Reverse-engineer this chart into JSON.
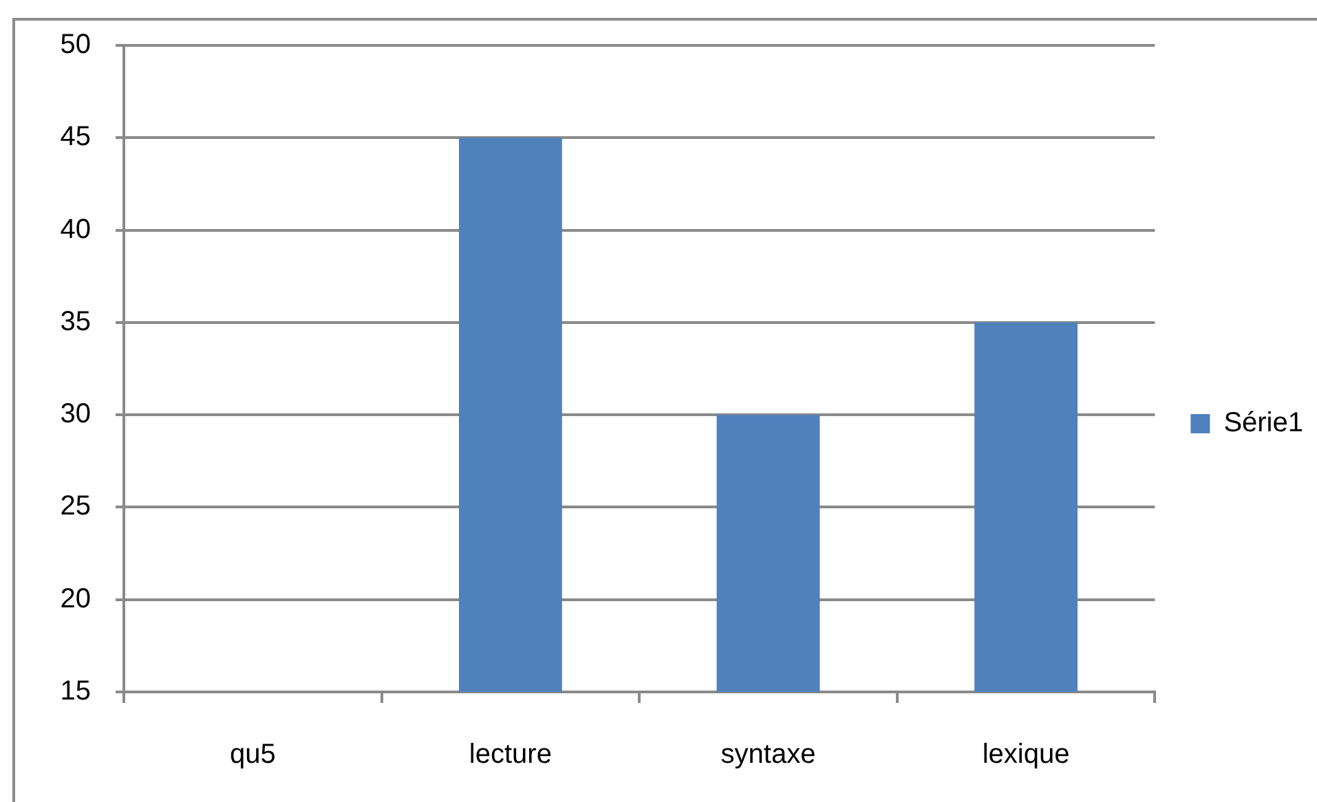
{
  "chart_data": {
    "type": "bar",
    "categories": [
      "qu5",
      "lecture",
      "syntaxe",
      "lexique"
    ],
    "series": [
      {
        "name": "Série1",
        "color": "#4f81bd",
        "values": [
          null,
          45,
          30,
          35
        ]
      }
    ],
    "ylim": [
      15,
      50
    ],
    "yticks": [
      15,
      20,
      25,
      30,
      35,
      40,
      45,
      50
    ],
    "grid": "y",
    "legend": "right"
  }
}
